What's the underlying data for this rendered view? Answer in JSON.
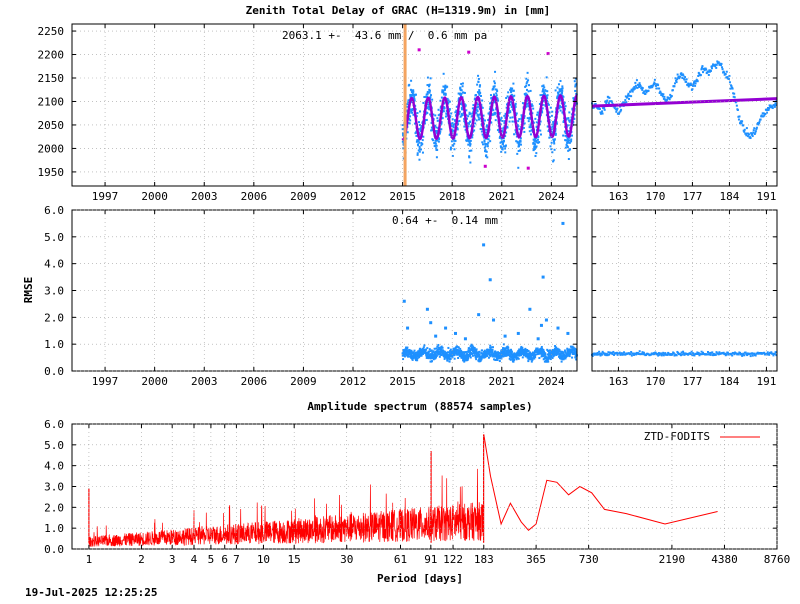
{
  "page": {
    "title": "Zenith Total Delay of GRAC (H=1319.9m) in [mm]",
    "timestamp": "19-Jul-2025 12:25:25"
  },
  "colors": {
    "data": "#1e90ff",
    "fit": "#9400d3",
    "outlier": "#cc00cc",
    "marker": "#f4a460",
    "spectrum": "#ff0000",
    "grid": "#a0a0a0",
    "axis": "#000000"
  },
  "chart_data": [
    {
      "id": "ztd_series",
      "type": "scatter",
      "title": "Zenith Total Delay of GRAC (H=1319.9m) in [mm]",
      "annotation": "2063.1 +-  43.6 mm /  0.6 mm pa",
      "xlim": [
        1995.0,
        2025.55
      ],
      "ylim": [
        1920,
        2265
      ],
      "xticks": [
        1997,
        2000,
        2003,
        2006,
        2009,
        2012,
        2015,
        2018,
        2021,
        2024
      ],
      "yticks": [
        1950,
        2000,
        2050,
        2100,
        2150,
        2200,
        2250
      ],
      "data_start": 2015.0,
      "marker_x": 2015.15,
      "series": [
        {
          "style": "points",
          "mean": 2063.1,
          "amplitude": 43.6,
          "trend_mm_per_year": 0.6,
          "x_range": [
            2015.0,
            2025.55
          ]
        },
        {
          "style": "fit",
          "mean": 2063.1,
          "amplitude": 43.6,
          "trend_mm_per_year": 0.6,
          "x_range": [
            2015.0,
            2025.55
          ]
        }
      ],
      "grid": true
    },
    {
      "id": "ztd_zoom",
      "type": "scatter",
      "xlim": [
        158,
        193
      ],
      "ylim": [
        1920,
        2265
      ],
      "xticks": [
        163,
        170,
        177,
        184,
        191
      ],
      "points": [
        [
          158,
          2092
        ],
        [
          159,
          2088
        ],
        [
          160,
          2078
        ],
        [
          161,
          2110
        ],
        [
          162,
          2090
        ],
        [
          163,
          2075
        ],
        [
          164,
          2095
        ],
        [
          165,
          2115
        ],
        [
          166,
          2130
        ],
        [
          167,
          2135
        ],
        [
          168,
          2120
        ],
        [
          169,
          2128
        ],
        [
          170,
          2140
        ],
        [
          171,
          2118
        ],
        [
          172,
          2100
        ],
        [
          173,
          2115
        ],
        [
          174,
          2150
        ],
        [
          175,
          2160
        ],
        [
          176,
          2140
        ],
        [
          177,
          2130
        ],
        [
          178,
          2152
        ],
        [
          179,
          2170
        ],
        [
          180,
          2160
        ],
        [
          181,
          2175
        ],
        [
          182,
          2185
        ],
        [
          183,
          2160
        ],
        [
          184,
          2145
        ],
        [
          185,
          2112
        ],
        [
          186,
          2060
        ],
        [
          187,
          2035
        ],
        [
          188,
          2025
        ],
        [
          189,
          2040
        ],
        [
          190,
          2065
        ],
        [
          191,
          2080
        ],
        [
          192,
          2090
        ],
        [
          193,
          2095
        ]
      ],
      "fit": [
        [
          158,
          2090
        ],
        [
          193,
          2106
        ]
      ],
      "grid": true
    },
    {
      "id": "rmse_series",
      "type": "scatter",
      "ylabel": "RMSE",
      "annotation": "0.64 +-  0.14 mm",
      "xlim": [
        1995.0,
        2025.55
      ],
      "ylim": [
        0.0,
        6.0
      ],
      "xticks": [
        1997,
        2000,
        2003,
        2006,
        2009,
        2012,
        2015,
        2018,
        2021,
        2024
      ],
      "yticks": [
        0.0,
        1.0,
        2.0,
        3.0,
        4.0,
        5.0,
        6.0
      ],
      "data_start": 2015.0,
      "mean": 0.64,
      "std": 0.14,
      "outliers": [
        [
          2015.1,
          2.6
        ],
        [
          2015.3,
          1.6
        ],
        [
          2016.5,
          2.3
        ],
        [
          2016.7,
          1.8
        ],
        [
          2017.0,
          1.3
        ],
        [
          2017.6,
          1.6
        ],
        [
          2018.2,
          1.4
        ],
        [
          2018.8,
          1.2
        ],
        [
          2019.6,
          2.1
        ],
        [
          2019.9,
          4.7
        ],
        [
          2020.3,
          3.4
        ],
        [
          2020.5,
          1.9
        ],
        [
          2021.2,
          1.3
        ],
        [
          2022.0,
          1.4
        ],
        [
          2022.7,
          2.3
        ],
        [
          2023.2,
          1.2
        ],
        [
          2023.4,
          1.7
        ],
        [
          2023.5,
          3.5
        ],
        [
          2023.7,
          1.9
        ],
        [
          2024.4,
          1.6
        ],
        [
          2024.7,
          5.5
        ],
        [
          2025.0,
          1.4
        ]
      ],
      "grid": true
    },
    {
      "id": "rmse_zoom",
      "type": "scatter",
      "xlim": [
        158,
        193
      ],
      "ylim": [
        0.0,
        6.0
      ],
      "xticks": [
        163,
        170,
        177,
        184,
        191
      ],
      "level": 0.64,
      "grid": true
    },
    {
      "id": "spectrum",
      "type": "line",
      "title": "Amplitude spectrum (88574 samples)",
      "xlabel": "Period [days]",
      "xscale": "log",
      "xlim": [
        0.8,
        8760
      ],
      "ylim": [
        0.0,
        6.0
      ],
      "xtick_values": [
        1,
        2,
        3,
        4,
        5,
        6,
        7,
        10,
        15,
        30,
        61,
        91,
        122,
        183,
        365,
        730,
        2190,
        4380,
        8760
      ],
      "xtick_labels": [
        "1",
        "2",
        "3",
        "4",
        "5",
        "6",
        "7",
        "10",
        "15",
        "30",
        "61",
        "91",
        "122",
        "183",
        "365",
        "730",
        "2190",
        "4380",
        "8760"
      ],
      "yticks": [
        0.0,
        1.0,
        2.0,
        3.0,
        4.0,
        5.0,
        6.0
      ],
      "peaks": [
        [
          1.0,
          2.9
        ],
        [
          182.6,
          5.5
        ],
        [
          91.3,
          4.7
        ]
      ],
      "long_period": [
        [
          183,
          5.5
        ],
        [
          200,
          3.5
        ],
        [
          230,
          1.2
        ],
        [
          260,
          2.2
        ],
        [
          300,
          1.3
        ],
        [
          330,
          0.9
        ],
        [
          365,
          1.2
        ],
        [
          420,
          3.3
        ],
        [
          480,
          3.2
        ],
        [
          560,
          2.6
        ],
        [
          650,
          3.0
        ],
        [
          760,
          2.7
        ],
        [
          900,
          1.9
        ],
        [
          1200,
          1.7
        ],
        [
          2000,
          1.2
        ],
        [
          4000,
          1.8
        ]
      ],
      "legend": "ZTD-FODITS",
      "legend_position": "top-right",
      "grid": true
    }
  ]
}
